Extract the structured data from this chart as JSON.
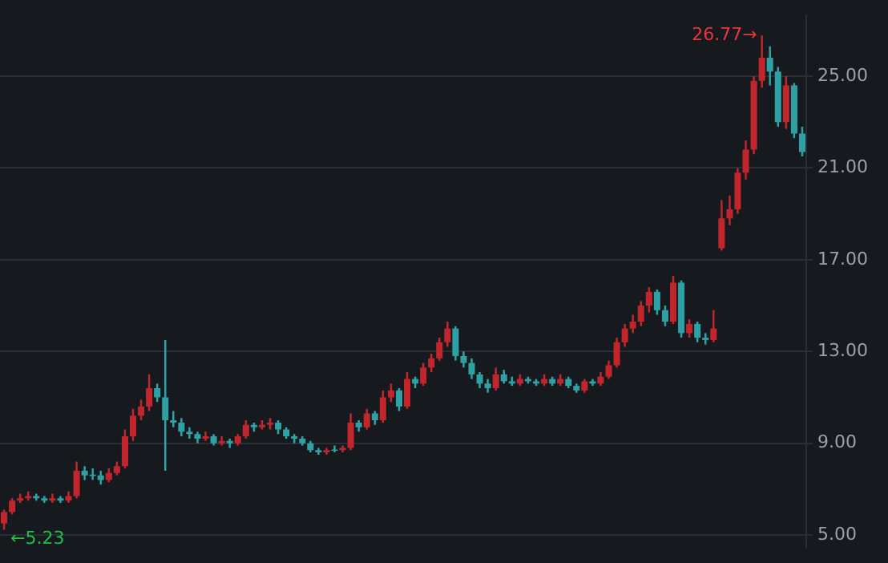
{
  "chart_data": {
    "type": "candlestick",
    "categories": [
      null,
      null,
      null,
      null,
      null,
      null,
      null,
      null,
      null,
      null,
      null,
      null,
      null,
      null,
      null,
      null,
      null,
      null,
      null,
      null,
      null,
      null,
      null,
      null,
      null,
      null,
      null,
      null,
      null,
      null,
      null,
      null,
      null,
      null,
      null,
      null,
      null,
      null,
      null,
      null,
      null,
      null,
      null,
      null,
      null,
      null,
      null,
      null,
      null,
      null,
      null,
      null,
      null,
      null,
      null,
      null,
      null,
      null,
      null,
      null,
      null,
      null,
      null,
      null,
      null,
      null,
      null,
      null,
      null,
      null,
      null,
      null,
      null,
      null,
      null,
      null,
      null,
      null,
      null,
      null,
      null,
      null,
      null,
      null,
      null,
      null,
      null,
      null,
      null,
      null,
      null,
      null,
      null,
      null,
      null,
      null,
      null,
      null,
      null,
      null
    ],
    "ohlc": [
      [
        5.5,
        6.1,
        5.23,
        6.0
      ],
      [
        6.0,
        6.6,
        5.9,
        6.5
      ],
      [
        6.5,
        6.8,
        6.4,
        6.6
      ],
      [
        6.6,
        6.9,
        6.5,
        6.7
      ],
      [
        6.7,
        6.8,
        6.5,
        6.6
      ],
      [
        6.6,
        6.7,
        6.4,
        6.5
      ],
      [
        6.5,
        6.8,
        6.4,
        6.6
      ],
      [
        6.6,
        6.7,
        6.4,
        6.5
      ],
      [
        6.5,
        6.9,
        6.4,
        6.7
      ],
      [
        6.7,
        8.2,
        6.6,
        7.8
      ],
      [
        7.8,
        8.0,
        7.4,
        7.6
      ],
      [
        7.6,
        7.9,
        7.4,
        7.6
      ],
      [
        7.6,
        7.8,
        7.2,
        7.4
      ],
      [
        7.4,
        7.9,
        7.3,
        7.7
      ],
      [
        7.7,
        8.2,
        7.6,
        8.0
      ],
      [
        8.0,
        9.6,
        7.9,
        9.3
      ],
      [
        9.3,
        10.5,
        9.1,
        10.2
      ],
      [
        10.2,
        10.9,
        10.0,
        10.6
      ],
      [
        10.6,
        12.0,
        10.4,
        11.4
      ],
      [
        11.4,
        11.6,
        10.8,
        11.0
      ],
      [
        11.0,
        13.5,
        7.8,
        10.0
      ],
      [
        10.0,
        10.4,
        9.7,
        9.9
      ],
      [
        9.9,
        10.1,
        9.3,
        9.5
      ],
      [
        9.5,
        9.7,
        9.2,
        9.4
      ],
      [
        9.4,
        9.5,
        9.0,
        9.2
      ],
      [
        9.2,
        9.5,
        9.1,
        9.3
      ],
      [
        9.3,
        9.4,
        8.9,
        9.0
      ],
      [
        9.0,
        9.3,
        8.9,
        9.1
      ],
      [
        9.1,
        9.2,
        8.8,
        9.0
      ],
      [
        9.0,
        9.4,
        8.9,
        9.3
      ],
      [
        9.3,
        10.0,
        9.2,
        9.8
      ],
      [
        9.8,
        9.9,
        9.5,
        9.7
      ],
      [
        9.7,
        10.0,
        9.6,
        9.8
      ],
      [
        9.8,
        10.1,
        9.6,
        9.9
      ],
      [
        9.9,
        10.0,
        9.4,
        9.6
      ],
      [
        9.6,
        9.7,
        9.2,
        9.3
      ],
      [
        9.3,
        9.4,
        9.0,
        9.2
      ],
      [
        9.2,
        9.3,
        8.9,
        9.0
      ],
      [
        9.0,
        9.1,
        8.6,
        8.7
      ],
      [
        8.7,
        8.8,
        8.5,
        8.6
      ],
      [
        8.6,
        8.8,
        8.5,
        8.7
      ],
      [
        8.7,
        8.9,
        8.6,
        8.7
      ],
      [
        8.7,
        8.9,
        8.6,
        8.8
      ],
      [
        8.8,
        10.3,
        8.7,
        9.9
      ],
      [
        9.9,
        10.0,
        9.5,
        9.7
      ],
      [
        9.7,
        10.5,
        9.6,
        10.3
      ],
      [
        10.3,
        10.4,
        9.8,
        10.0
      ],
      [
        10.0,
        11.3,
        9.9,
        11.0
      ],
      [
        11.0,
        11.6,
        10.8,
        11.3
      ],
      [
        11.3,
        11.4,
        10.4,
        10.6
      ],
      [
        10.6,
        12.1,
        10.5,
        11.8
      ],
      [
        11.8,
        11.9,
        11.4,
        11.6
      ],
      [
        11.6,
        12.5,
        11.5,
        12.3
      ],
      [
        12.3,
        12.9,
        12.1,
        12.7
      ],
      [
        12.7,
        13.6,
        12.6,
        13.4
      ],
      [
        13.4,
        14.3,
        13.2,
        14.0
      ],
      [
        14.0,
        14.1,
        12.6,
        12.8
      ],
      [
        12.8,
        13.0,
        12.3,
        12.5
      ],
      [
        12.5,
        12.7,
        11.8,
        12.0
      ],
      [
        12.0,
        12.1,
        11.4,
        11.6
      ],
      [
        11.6,
        11.8,
        11.2,
        11.4
      ],
      [
        11.4,
        12.3,
        11.3,
        12.0
      ],
      [
        12.0,
        12.2,
        11.6,
        11.7
      ],
      [
        11.7,
        11.9,
        11.5,
        11.6
      ],
      [
        11.6,
        12.0,
        11.5,
        11.8
      ],
      [
        11.8,
        11.9,
        11.6,
        11.7
      ],
      [
        11.7,
        11.8,
        11.5,
        11.6
      ],
      [
        11.6,
        12.0,
        11.5,
        11.8
      ],
      [
        11.8,
        11.9,
        11.5,
        11.6
      ],
      [
        11.6,
        12.0,
        11.5,
        11.8
      ],
      [
        11.8,
        11.9,
        11.4,
        11.5
      ],
      [
        11.5,
        11.6,
        11.2,
        11.3
      ],
      [
        11.3,
        11.8,
        11.2,
        11.7
      ],
      [
        11.7,
        11.8,
        11.5,
        11.6
      ],
      [
        11.6,
        12.1,
        11.5,
        11.9
      ],
      [
        11.9,
        12.6,
        11.8,
        12.4
      ],
      [
        12.4,
        13.6,
        12.3,
        13.4
      ],
      [
        13.4,
        14.2,
        13.2,
        14.0
      ],
      [
        14.0,
        14.6,
        13.8,
        14.3
      ],
      [
        14.3,
        15.2,
        14.1,
        15.0
      ],
      [
        15.0,
        15.8,
        14.7,
        15.6
      ],
      [
        15.6,
        15.7,
        14.6,
        14.8
      ],
      [
        14.8,
        15.0,
        14.1,
        14.3
      ],
      [
        14.3,
        16.3,
        14.2,
        16.0
      ],
      [
        16.0,
        16.1,
        13.6,
        13.8
      ],
      [
        13.8,
        14.4,
        13.6,
        14.2
      ],
      [
        14.2,
        14.3,
        13.4,
        13.6
      ],
      [
        13.6,
        13.8,
        13.3,
        13.5
      ],
      [
        13.5,
        14.8,
        13.4,
        14.0
      ],
      [
        17.5,
        19.6,
        17.4,
        18.8
      ],
      [
        18.8,
        19.8,
        18.5,
        19.2
      ],
      [
        19.2,
        21.0,
        19.0,
        20.8
      ],
      [
        20.8,
        22.2,
        20.5,
        21.8
      ],
      [
        21.8,
        25.0,
        21.6,
        24.8
      ],
      [
        24.8,
        26.77,
        24.5,
        25.8
      ],
      [
        25.8,
        26.3,
        24.6,
        25.2
      ],
      [
        25.2,
        25.4,
        22.8,
        23.0
      ],
      [
        23.0,
        25.0,
        22.7,
        24.6
      ],
      [
        24.6,
        24.7,
        22.3,
        22.5
      ],
      [
        22.5,
        22.8,
        21.5,
        21.7
      ]
    ],
    "colors": [
      "#c0262c",
      "#c0262c",
      "#c0262c",
      "#c0262c",
      "#2fa0a3",
      "#2fa0a3",
      "#c0262c",
      "#2fa0a3",
      "#c0262c",
      "#c0262c",
      "#2fa0a3",
      "#2fa0a3",
      "#2fa0a3",
      "#c0262c",
      "#c0262c",
      "#c0262c",
      "#c0262c",
      "#c0262c",
      "#c0262c",
      "#2fa0a3",
      "#2fa0a3",
      "#2fa0a3",
      "#2fa0a3",
      "#2fa0a3",
      "#2fa0a3",
      "#c0262c",
      "#2fa0a3",
      "#c0262c",
      "#2fa0a3",
      "#c0262c",
      "#c0262c",
      "#2fa0a3",
      "#c0262c",
      "#c0262c",
      "#2fa0a3",
      "#2fa0a3",
      "#2fa0a3",
      "#2fa0a3",
      "#2fa0a3",
      "#2fa0a3",
      "#c0262c",
      "#2fa0a3",
      "#c0262c",
      "#c0262c",
      "#2fa0a3",
      "#c0262c",
      "#2fa0a3",
      "#c0262c",
      "#c0262c",
      "#2fa0a3",
      "#c0262c",
      "#2fa0a3",
      "#c0262c",
      "#c0262c",
      "#c0262c",
      "#c0262c",
      "#2fa0a3",
      "#2fa0a3",
      "#2fa0a3",
      "#2fa0a3",
      "#2fa0a3",
      "#c0262c",
      "#2fa0a3",
      "#2fa0a3",
      "#c0262c",
      "#2fa0a3",
      "#2fa0a3",
      "#c0262c",
      "#2fa0a3",
      "#c0262c",
      "#2fa0a3",
      "#2fa0a3",
      "#c0262c",
      "#2fa0a3",
      "#c0262c",
      "#c0262c",
      "#c0262c",
      "#c0262c",
      "#c0262c",
      "#c0262c",
      "#c0262c",
      "#2fa0a3",
      "#2fa0a3",
      "#c0262c",
      "#2fa0a3",
      "#c0262c",
      "#2fa0a3",
      "#2fa0a3",
      "#c0262c",
      "#c0262c",
      "#c0262c",
      "#c0262c",
      "#c0262c",
      "#c0262c",
      "#c0262c",
      "#2fa0a3",
      "#2fa0a3",
      "#c0262c",
      "#2fa0a3",
      "#2fa0a3"
    ],
    "ylim": [
      4.45,
      27.65
    ],
    "yticks": [
      {
        "value": 5,
        "label": "5.00"
      },
      {
        "value": 9,
        "label": "9.00"
      },
      {
        "value": 13,
        "label": "13.00"
      },
      {
        "value": 17,
        "label": "17.00"
      },
      {
        "value": 21,
        "label": "21.00"
      },
      {
        "value": 25,
        "label": "25.00"
      }
    ],
    "annotations": [
      "26.77→",
      "←5.23"
    ],
    "grid": "y",
    "tick_labels": "y",
    "legend": false
  }
}
